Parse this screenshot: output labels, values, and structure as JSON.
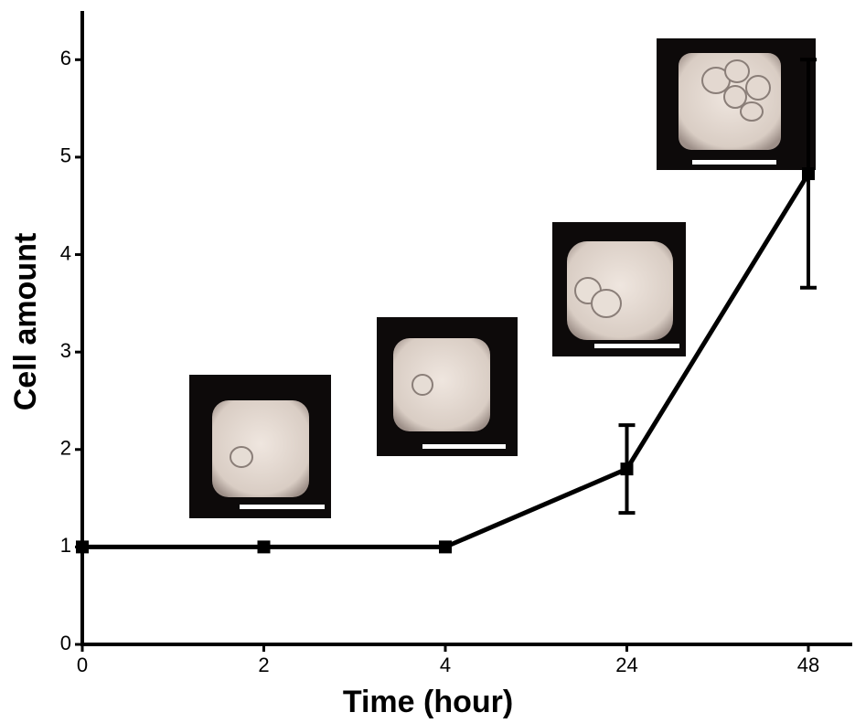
{
  "chart_data": {
    "type": "line",
    "x_label": "Time (hour)",
    "y_label": "Cell amount",
    "categories": [
      "0",
      "2",
      "4",
      "24",
      "48"
    ],
    "values": [
      1,
      1,
      1,
      1.8,
      4.83
    ],
    "errors": [
      null,
      null,
      null,
      0.45,
      1.17
    ],
    "color": "#000000",
    "ylim": [
      0,
      6.5
    ],
    "yticks": [
      0,
      1,
      2,
      3,
      4,
      5,
      6
    ]
  }
}
